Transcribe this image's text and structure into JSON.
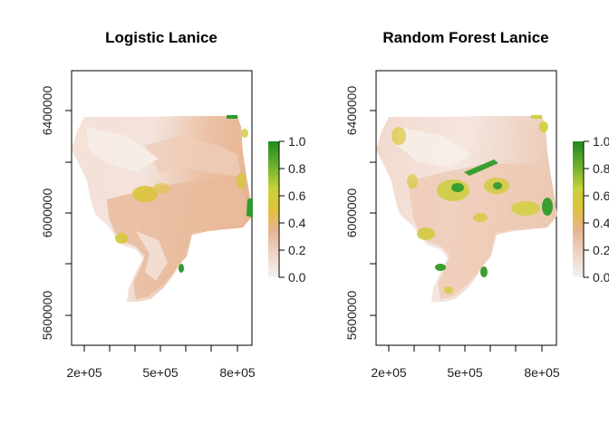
{
  "panels": [
    {
      "title": "Logistic Lanice",
      "x_ticks": [
        "2e+05",
        "5e+05",
        "8e+05"
      ],
      "y_ticks": [
        "5600000",
        "6000000",
        "6400000"
      ]
    },
    {
      "title": "Random Forest Lanice",
      "x_ticks": [
        "2e+05",
        "5e+05",
        "8e+05"
      ],
      "y_ticks": [
        "5600000",
        "6000000",
        "6400000"
      ]
    }
  ],
  "legend": {
    "ticks": [
      "0.0",
      "0.2",
      "0.4",
      "0.6",
      "0.8",
      "1.0"
    ],
    "palette": [
      "#f3f3f3",
      "#edc9b0",
      "#e5b086",
      "#e2c13a",
      "#b4d23a",
      "#4fa52a",
      "#1f8a1f"
    ]
  },
  "colors": {
    "base": "#f0d2c2",
    "light": "#f6ebe6",
    "tan": "#e3b38f",
    "yellow": "#d8c93b",
    "green": "#2f9a2f"
  }
}
